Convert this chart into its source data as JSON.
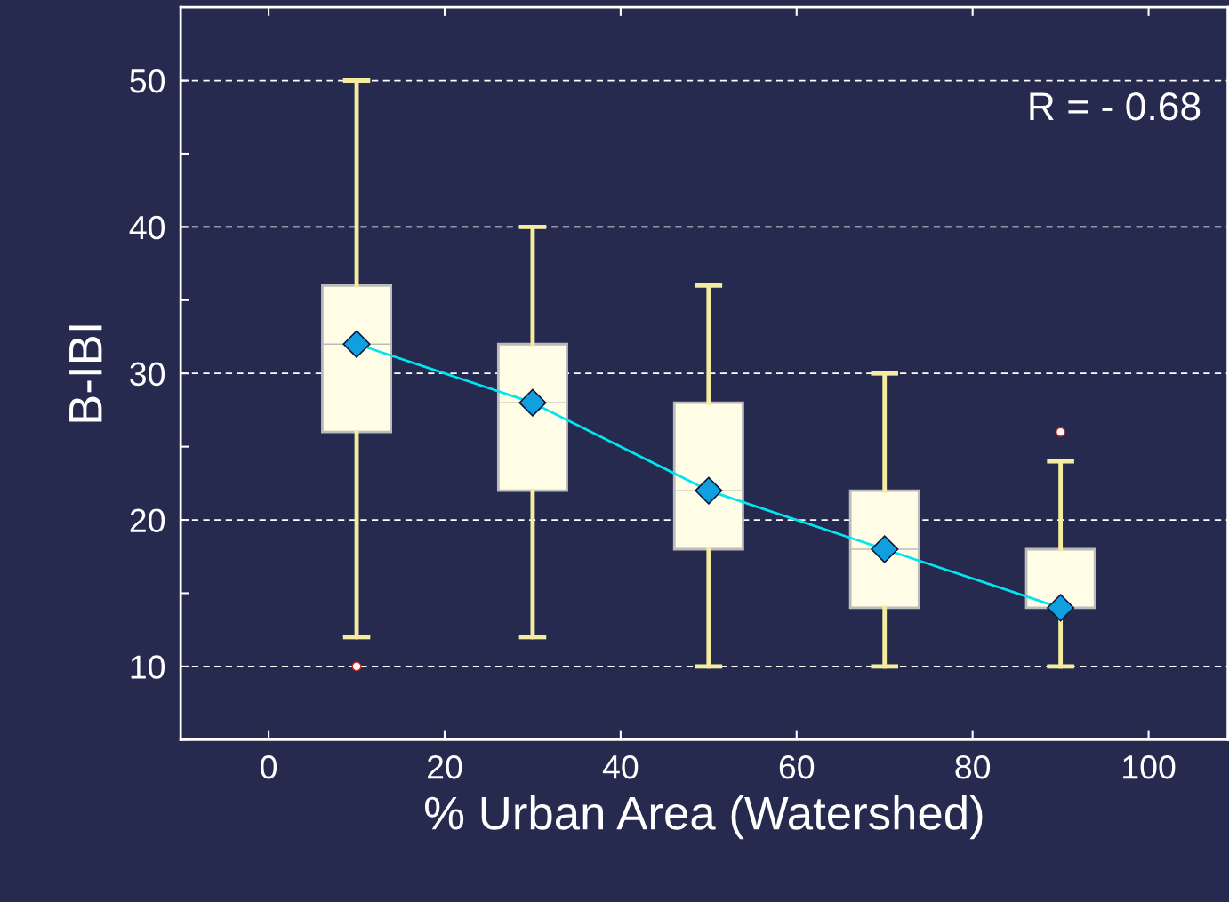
{
  "chart_data": {
    "type": "box",
    "xlabel": "% Urban Area (Watershed)",
    "ylabel": "B-IBI",
    "x": [
      10,
      30,
      50,
      70,
      90
    ],
    "color": "#fffde6",
    "grid": "y",
    "boxes": [
      {
        "low": 12,
        "q1": 26,
        "median": 32,
        "q3": 36,
        "high": 50,
        "outliers": [
          10
        ]
      },
      {
        "low": 12,
        "q1": 22,
        "median": 28,
        "q3": 32,
        "high": 40
      },
      {
        "low": 10,
        "q1": 18,
        "median": 22,
        "q3": 28,
        "high": 36
      },
      {
        "low": 10,
        "q1": 14,
        "median": 18,
        "q3": 22,
        "high": 30
      },
      {
        "low": 10,
        "q1": 14,
        "median": 14,
        "q3": 18,
        "high": 24,
        "outliers": [
          26
        ]
      }
    ],
    "series": [
      {
        "type": "line",
        "color": "#00e5ee",
        "marker": "diamond",
        "x": [
          10,
          30,
          50,
          70,
          90
        ],
        "values": [
          32,
          28,
          22,
          18,
          14
        ]
      }
    ],
    "xlim": [
      -10,
      109
    ],
    "xticks": [
      0,
      20,
      40,
      60,
      80,
      100
    ],
    "ylim": [
      5,
      55
    ],
    "yticks": [
      {
        "value": 5,
        "label": null
      },
      10,
      {
        "value": 15,
        "label": null
      },
      20,
      {
        "value": 25,
        "label": null
      },
      30,
      {
        "value": 35,
        "label": null
      },
      40,
      {
        "value": 45,
        "label": null
      },
      50
    ],
    "annotations": [
      "R = - 0.68"
    ]
  }
}
